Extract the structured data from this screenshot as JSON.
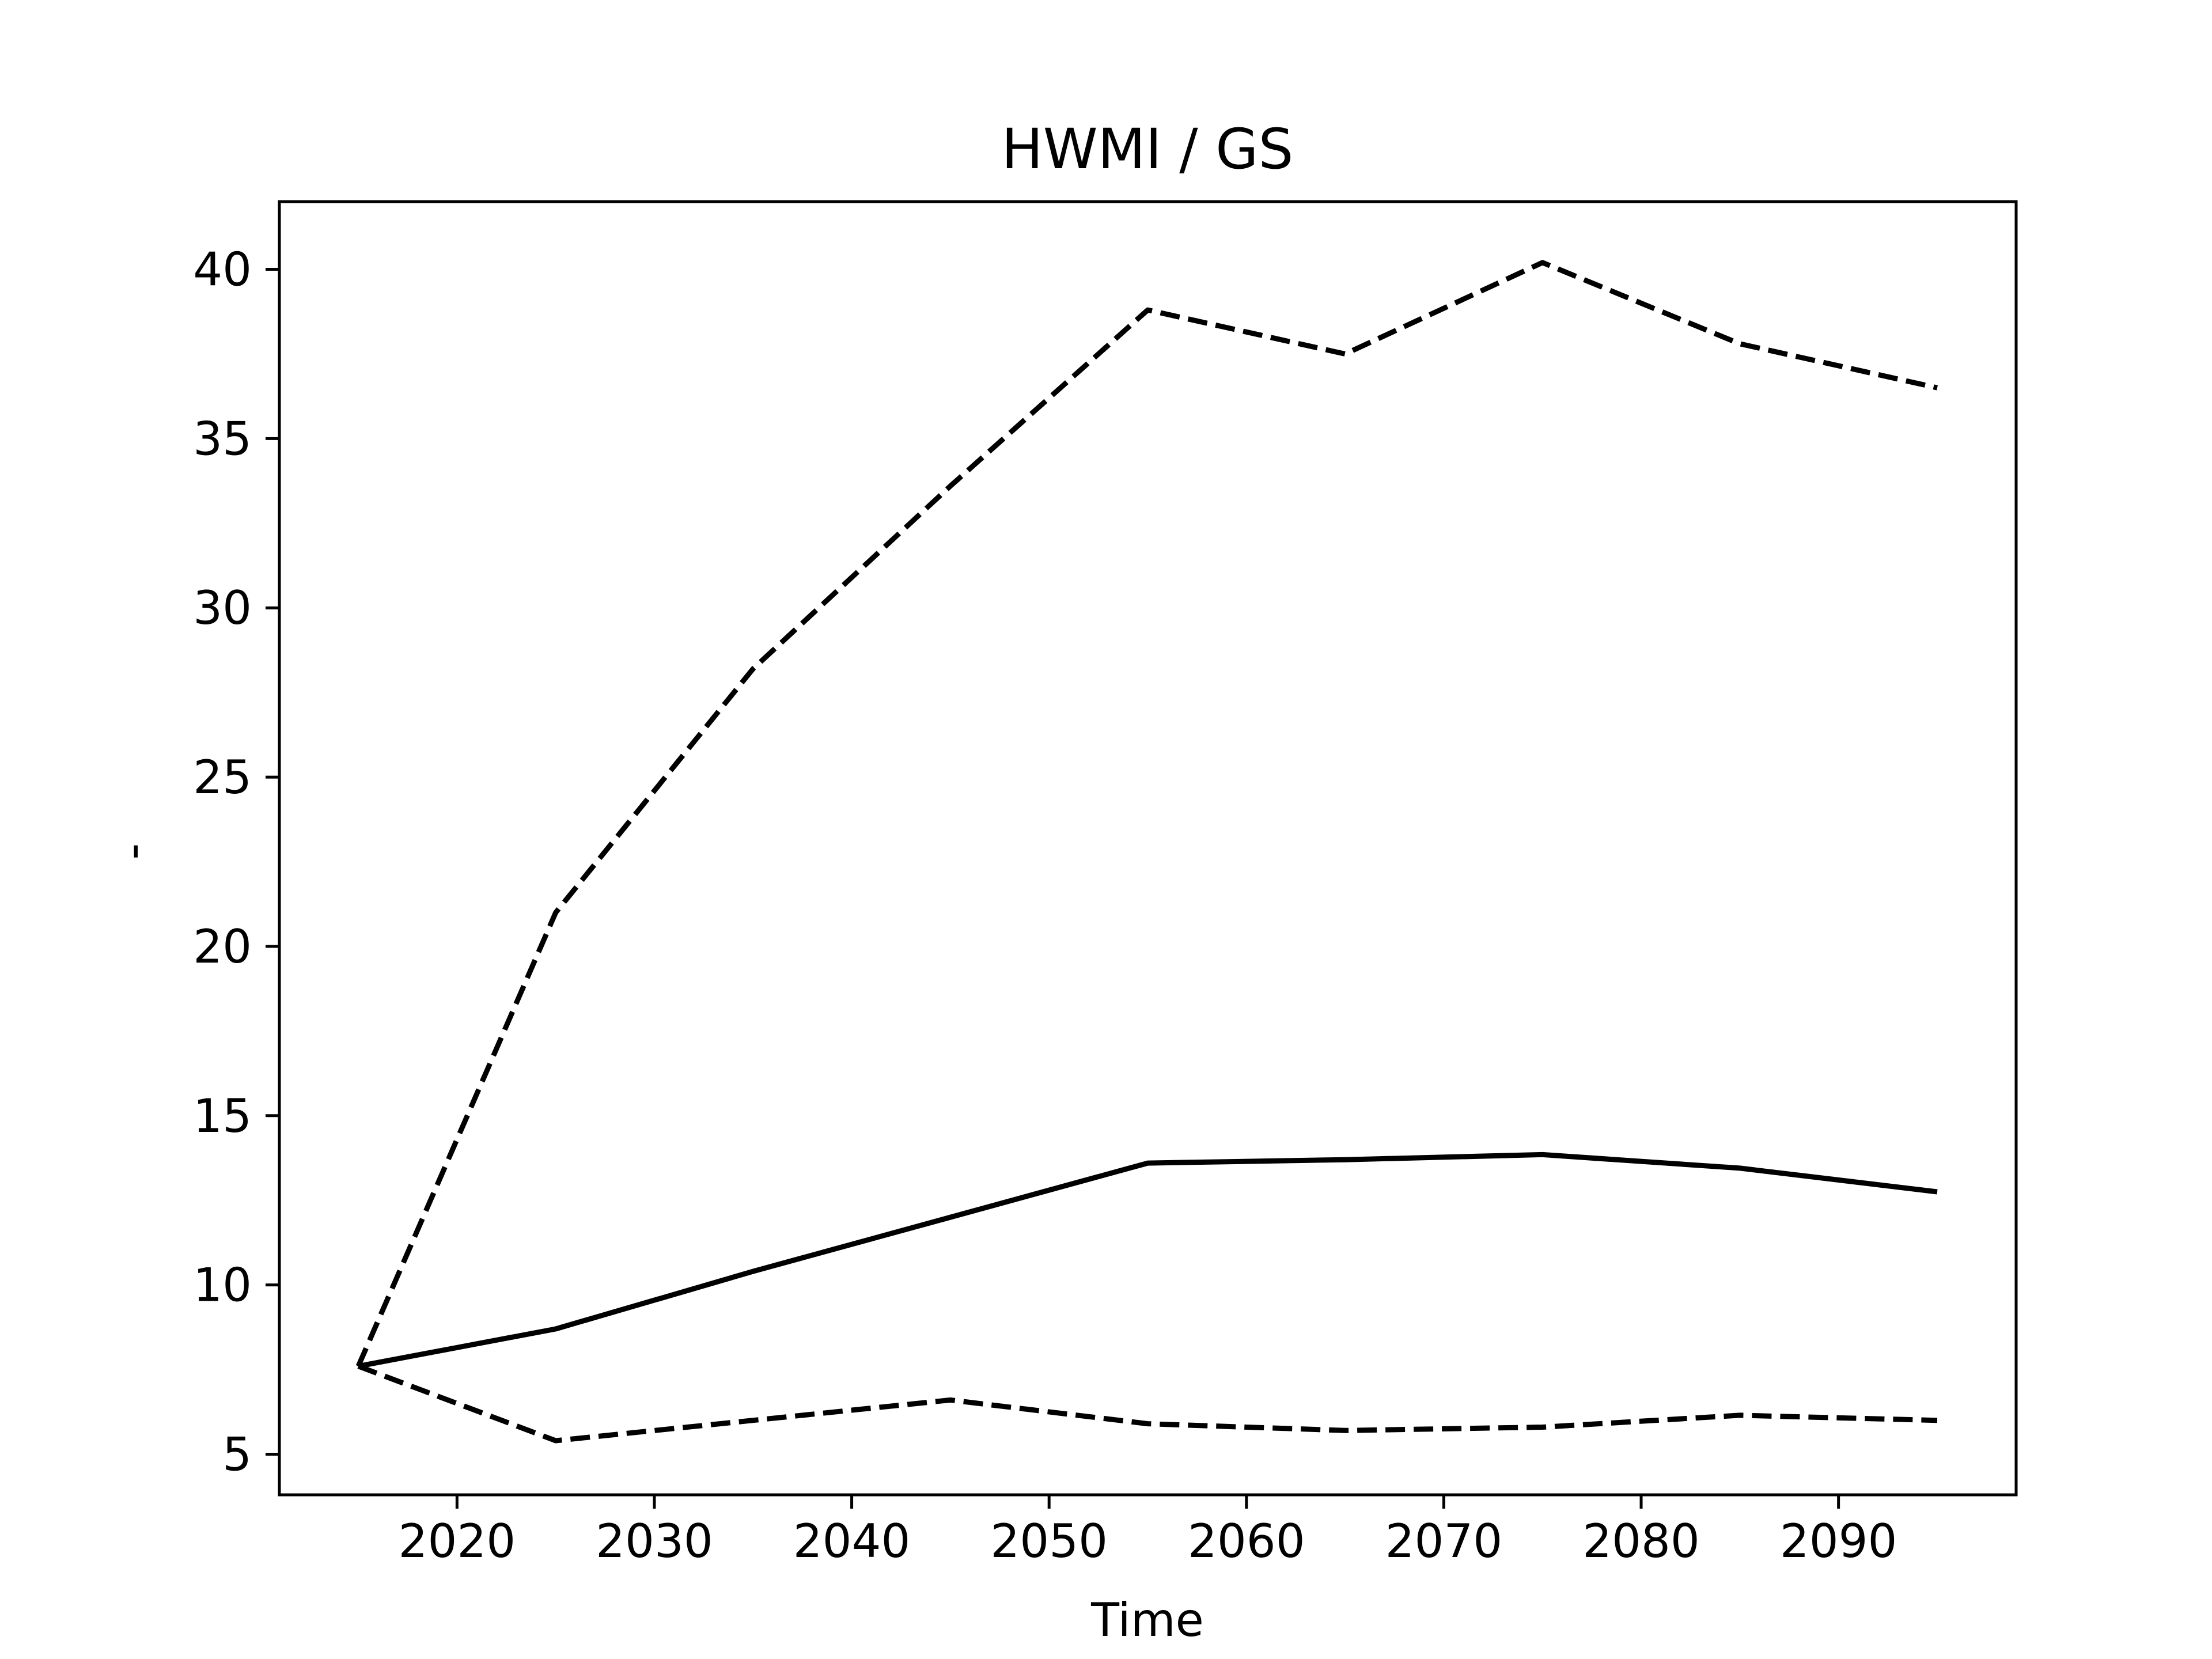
{
  "chart_data": {
    "type": "line",
    "title": "HWMI / GS",
    "xlabel": "Time",
    "ylabel": "-",
    "xlim": [
      2011,
      2099
    ],
    "ylim": [
      3.8,
      42.0
    ],
    "xticks": [
      2020,
      2030,
      2040,
      2050,
      2060,
      2070,
      2080,
      2090
    ],
    "yticks": [
      5,
      10,
      15,
      20,
      25,
      30,
      35,
      40
    ],
    "grid": false,
    "legend": "none",
    "x": [
      2015,
      2025,
      2035,
      2045,
      2055,
      2065,
      2075,
      2085,
      2095
    ],
    "series": [
      {
        "style": "solid",
        "color": "#000000",
        "values": [
          7.6,
          8.7,
          10.4,
          12.0,
          13.6,
          13.7,
          13.85,
          13.45,
          12.75
        ]
      },
      {
        "style": "dashed",
        "color": "#000000",
        "values": [
          7.6,
          21.0,
          28.2,
          33.6,
          38.8,
          37.5,
          40.2,
          37.8,
          36.5
        ]
      },
      {
        "style": "dashed",
        "color": "#000000",
        "values": [
          7.6,
          5.4,
          6.0,
          6.6,
          5.9,
          5.7,
          5.8,
          6.15,
          6.0
        ]
      }
    ]
  }
}
